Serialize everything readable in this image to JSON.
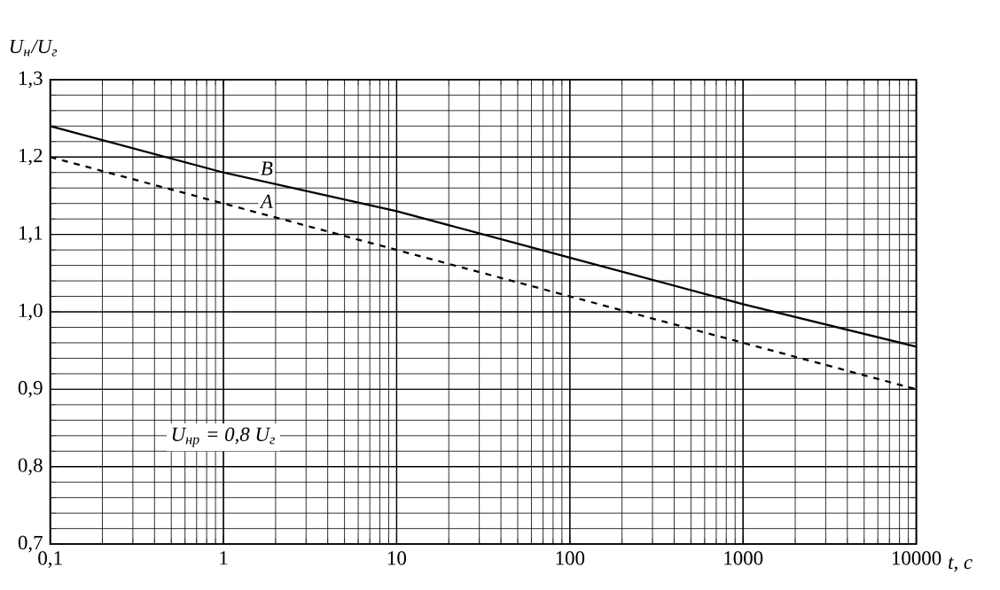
{
  "chart_data": {
    "type": "line",
    "ylabel": "U$_{н}$/U$_{г}$",
    "xlabel": "t, c",
    "log": "x",
    "grid": true,
    "xlim": [
      0.1,
      10000
    ],
    "ylim": [
      0.7,
      1.3
    ],
    "xticks": [
      {
        "value": 0.1,
        "label": "0,1"
      },
      1,
      10,
      100,
      1000,
      10000
    ],
    "yticks": [
      {
        "value": 0.7,
        "label": "0,7"
      },
      {
        "value": 0.8,
        "label": "0,8"
      },
      {
        "value": 0.9,
        "label": "0,9"
      },
      {
        "value": 1.0,
        "label": "1,0"
      },
      {
        "value": 1.1,
        "label": "1,1"
      },
      {
        "value": 1.2,
        "label": "1,2"
      },
      {
        "value": 1.3,
        "label": "1,3"
      }
    ],
    "series": [
      {
        "name": "B",
        "color": "#000000",
        "line_style": "solid",
        "x": [
          0.1,
          1,
          10,
          100,
          1000,
          10000
        ],
        "values": [
          1.24,
          1.18,
          1.13,
          1.07,
          1.01,
          0.955
        ]
      },
      {
        "name": "A",
        "color": "#000000",
        "line_style": "dashed",
        "x": [
          0.1,
          1,
          10,
          100,
          1000,
          10000
        ],
        "values": [
          1.2,
          1.14,
          1.08,
          1.02,
          0.96,
          0.9
        ]
      }
    ],
    "annotations": [
      "U$_{нр}$ = 0,8 U$_{г}$"
    ]
  }
}
